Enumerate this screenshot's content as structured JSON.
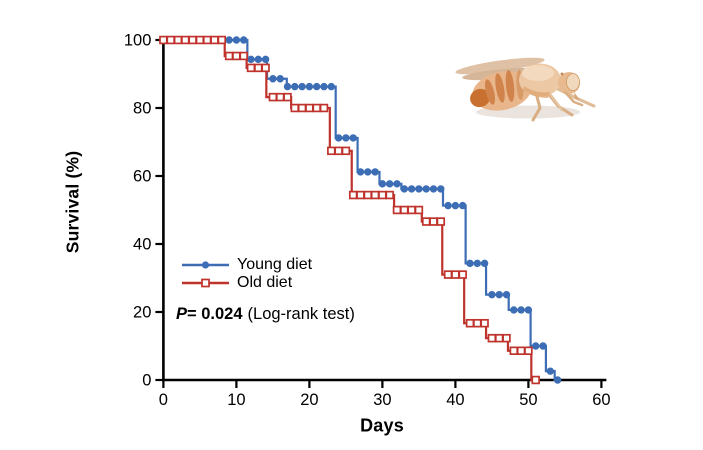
{
  "figure": {
    "background": "#ffffff",
    "text_color": "#000000"
  },
  "chart_data": {
    "type": "line",
    "subtype": "kaplan-meier-survival-steps",
    "title": "",
    "xlabel": "Days",
    "ylabel": "Survival (%)",
    "xlim": [
      0,
      60
    ],
    "ylim": [
      0,
      100
    ],
    "x_ticks": [
      0,
      10,
      20,
      30,
      40,
      50,
      60
    ],
    "y_ticks": [
      100,
      80,
      60,
      40,
      20,
      0
    ],
    "grid": false,
    "legend_position": "inside-lower-left",
    "axis_color": "#000000",
    "series": [
      {
        "name": "Young diet",
        "color": "#3D6EB5",
        "marker": "filled-circle",
        "steps_day_percent": [
          [
            0,
            100
          ],
          [
            11.5,
            94.3
          ],
          [
            14.2,
            88.6
          ],
          [
            16.9,
            86.3
          ],
          [
            23.6,
            71.2
          ],
          [
            26.6,
            61.2
          ],
          [
            29.6,
            57.7
          ],
          [
            32.6,
            56.2
          ],
          [
            38.3,
            51.3
          ],
          [
            41.4,
            34.3
          ],
          [
            44.2,
            25.1
          ],
          [
            47.3,
            20.6
          ],
          [
            50.3,
            10.0
          ],
          [
            52.4,
            2.6
          ],
          [
            53.6,
            0
          ]
        ],
        "last_day": 54.4
      },
      {
        "name": "Old diet",
        "color": "#BF332C",
        "marker": "open-square",
        "steps_day_percent": [
          [
            0,
            100
          ],
          [
            8.4,
            95.3
          ],
          [
            11.4,
            91.8
          ],
          [
            14.1,
            83.2
          ],
          [
            17.5,
            80.0
          ],
          [
            22.8,
            67.4
          ],
          [
            25.8,
            54.4
          ],
          [
            31.6,
            50.0
          ],
          [
            35.4,
            46.6
          ],
          [
            38.2,
            31.0
          ],
          [
            41.2,
            16.7
          ],
          [
            44.2,
            12.3
          ],
          [
            47.2,
            8.6
          ],
          [
            50.4,
            0
          ]
        ],
        "last_day": 51.3
      }
    ],
    "annotation": {
      "p_symbol": "P",
      "p_value_text": "= 0.024",
      "test_note": "(Log-rank test)"
    }
  },
  "decorations": {
    "fly_illustration": "drosophila-fly-side-view",
    "fly_colors": {
      "body": "#E9B68C",
      "stripe": "#D0834B",
      "dark_tip": "#C8702F",
      "wing": "#DFC1A5",
      "highlight": "#F3DCC2"
    }
  }
}
